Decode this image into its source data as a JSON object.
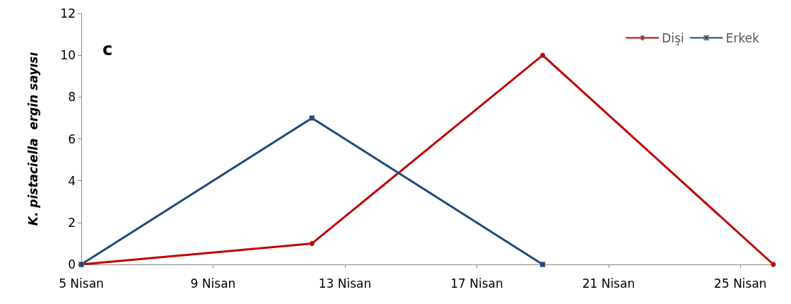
{
  "chart_data": {
    "type": "line",
    "ylabel": "K. pistaciella  ergin sayısı",
    "annotations": [
      "c"
    ],
    "x": [
      5.5,
      12.5,
      19.5,
      26.5
    ],
    "series": [
      {
        "name": "Dişi",
        "color": "#c00000",
        "marker": "circle",
        "values": [
          0,
          1,
          10,
          0
        ]
      },
      {
        "name": "Erkek",
        "color": "#1f497d",
        "marker": "square",
        "values": [
          0,
          7,
          0,
          null
        ]
      }
    ],
    "xlim": [
      5.5,
      26.5
    ],
    "xticks": [
      {
        "value": 5.5,
        "label": "5 Nisan"
      },
      {
        "value": 9.5,
        "label": "9 Nisan"
      },
      {
        "value": 13.5,
        "label": "13 Nisan"
      },
      {
        "value": 17.5,
        "label": "17 Nisan"
      },
      {
        "value": 21.5,
        "label": "21 Nisan"
      },
      {
        "value": 25.5,
        "label": "25 Nisan"
      }
    ],
    "ylim": [
      0,
      12
    ],
    "yticks": [
      0,
      2,
      4,
      6,
      8,
      10,
      12
    ],
    "grid": false,
    "legend": "top right",
    "line_style": "solid"
  }
}
